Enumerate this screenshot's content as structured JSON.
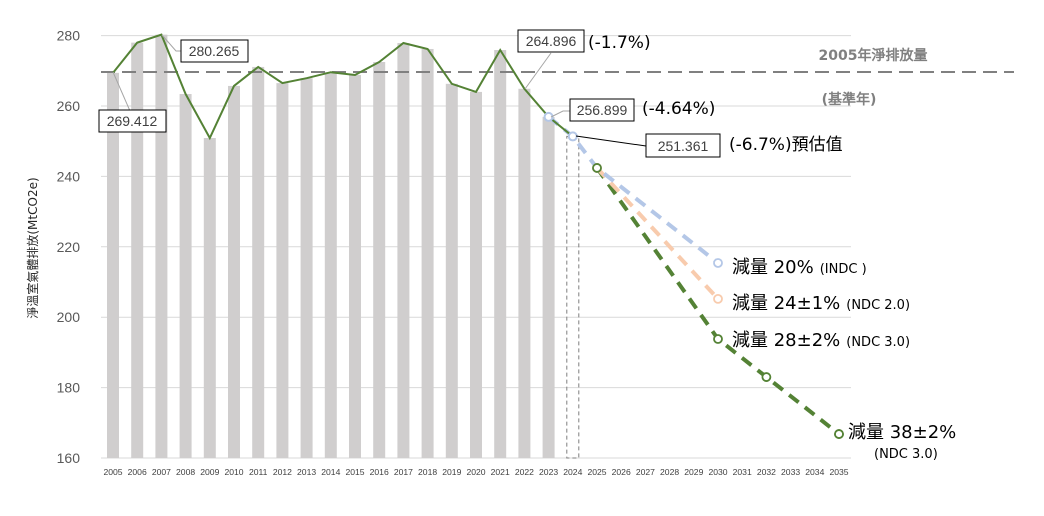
{
  "chart_data": {
    "type": "bar+line",
    "title": "",
    "ylabel": "淨溫室氣體排放(MtCO2e)",
    "xlabel": "",
    "ylim": [
      160,
      280
    ],
    "yticks": [
      160,
      180,
      200,
      220,
      240,
      260,
      280
    ],
    "grid": "horizontal",
    "categories": [
      "2005",
      "2006",
      "2007",
      "2008",
      "2009",
      "2010",
      "2011",
      "2012",
      "2013",
      "2014",
      "2015",
      "2016",
      "2017",
      "2018",
      "2019",
      "2020",
      "2021",
      "2022",
      "2023",
      "2024",
      "2025",
      "2026",
      "2027",
      "2028",
      "2029",
      "2030",
      "2031",
      "2032",
      "2033",
      "2034",
      "2035"
    ],
    "historical": {
      "name": "淨排放量",
      "years": [
        2005,
        2006,
        2007,
        2008,
        2009,
        2010,
        2011,
        2012,
        2013,
        2014,
        2015,
        2016,
        2017,
        2018,
        2019,
        2020,
        2021,
        2022,
        2023,
        2024
      ],
      "values": [
        269.412,
        278.0,
        280.265,
        263.4,
        250.9,
        265.7,
        271.1,
        266.5,
        267.9,
        269.6,
        268.8,
        272.5,
        277.9,
        276.2,
        266.3,
        264.0,
        275.9,
        264.896,
        256.899,
        251.361
      ],
      "bar_color": "#d0cece",
      "line_color": "#548235",
      "estimated_year": 2024
    },
    "baseline": {
      "value": 269.412,
      "label_line1": "2005年淨排放量",
      "label_line2": "(基準年)",
      "color": "#808080"
    },
    "scenarios": [
      {
        "name": "INDC",
        "label_main": "減量 20%",
        "label_sub": "(INDC )",
        "color": "#b4c7e7",
        "points": [
          [
            2023,
            256.899
          ],
          [
            2024,
            251.361
          ],
          [
            2025,
            242.4
          ],
          [
            2030,
            215.4
          ]
        ]
      },
      {
        "name": "NDC 2.0",
        "label_main": "減量 24±1%",
        "label_sub": "(NDC 2.0)",
        "color": "#f8cbad",
        "points": [
          [
            2025,
            242.4
          ],
          [
            2030,
            205.2
          ]
        ]
      },
      {
        "name": "NDC 3.0 (2030)",
        "label_main": "減量 28±2%",
        "label_sub": "(NDC 3.0)",
        "color": "#548235",
        "points": [
          [
            2025,
            242.4
          ],
          [
            2030,
            193.8
          ],
          [
            2032,
            183.0
          ],
          [
            2035,
            166.8
          ]
        ]
      },
      {
        "name": "NDC 3.0 (2035)",
        "label_main": "減量 38±2%",
        "label_sub": "(NDC 3.0)",
        "color": "#548235",
        "points": [
          [
            2035,
            166.8
          ]
        ]
      }
    ],
    "annotations": [
      {
        "year": 2005,
        "value_label": "269.412",
        "pct": ""
      },
      {
        "year": 2007,
        "value_label": "280.265",
        "pct": ""
      },
      {
        "year": 2022,
        "value_label": "264.896",
        "pct": "(-1.7%)"
      },
      {
        "year": 2023,
        "value_label": "256.899",
        "pct": "(-4.64%)"
      },
      {
        "year": 2024,
        "value_label": "251.361",
        "pct": "(-6.7%)預估值"
      }
    ]
  }
}
